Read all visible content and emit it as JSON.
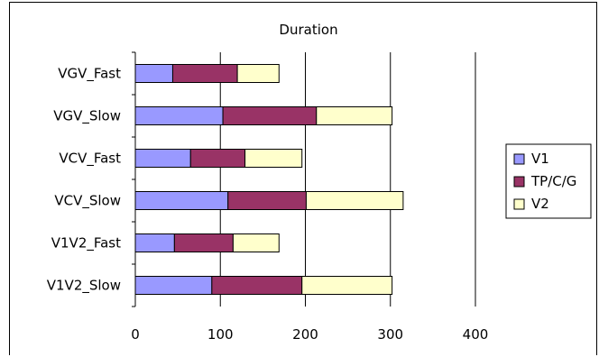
{
  "chart_data": {
    "type": "bar",
    "orientation": "horizontal",
    "stacked": true,
    "title": "Duration",
    "xlabel": "",
    "ylabel": "",
    "xlim": [
      0,
      400
    ],
    "x_ticks": [
      0,
      100,
      200,
      300,
      400
    ],
    "grid": true,
    "legend_position": "right",
    "categories": [
      "VGV_Fast",
      "VGV_Slow",
      "VCV_Fast",
      "VCV_Slow",
      "V1V2_Fast",
      "V1V2_Slow"
    ],
    "series": [
      {
        "name": "V1",
        "color": "#9999ff",
        "values": [
          44,
          103,
          65,
          109,
          46,
          90
        ]
      },
      {
        "name": "TP/C/G",
        "color": "#993366",
        "values": [
          76,
          110,
          64,
          92,
          69,
          106
        ]
      },
      {
        "name": "V2",
        "color": "#ffffcc",
        "values": [
          49,
          89,
          67,
          114,
          54,
          106
        ]
      }
    ]
  }
}
